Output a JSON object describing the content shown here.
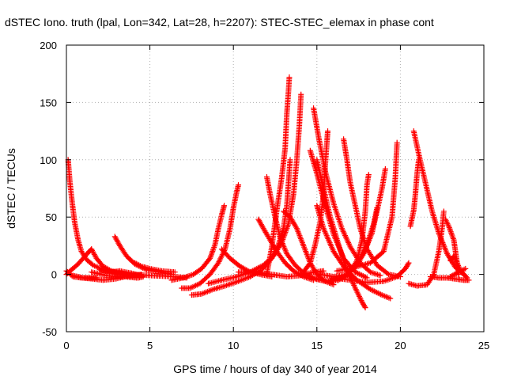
{
  "chart_data": {
    "type": "scatter",
    "title": "dSTEC Iono. truth (lpal, Lon=342, Lat=28, h=2207): STEC-STEC_elemax in phase cont",
    "xlabel": "GPS time / hours of day 340 of year 2014",
    "ylabel": "dSTEC  / TECUs",
    "xlim": [
      0,
      25
    ],
    "ylim": [
      -50,
      200
    ],
    "xticks": [
      "0",
      "5",
      "10",
      "15",
      "20",
      "25"
    ],
    "yticks": [
      "-50",
      "0",
      "50",
      "100",
      "150",
      "200"
    ],
    "grid": true,
    "marker": "+",
    "color": "#ff0000",
    "series": [
      {
        "values": [
          [
            0.0,
            3
          ],
          [
            0.4,
            -2
          ],
          [
            0.9,
            -3
          ],
          [
            1.4,
            -3
          ],
          [
            1.8,
            -3
          ]
        ]
      },
      {
        "values": [
          [
            0.1,
            100
          ],
          [
            0.2,
            82
          ],
          [
            0.35,
            62
          ],
          [
            0.5,
            45
          ],
          [
            0.7,
            30
          ],
          [
            0.9,
            20
          ],
          [
            1.2,
            13
          ],
          [
            1.6,
            8
          ],
          [
            2.2,
            4
          ],
          [
            3.0,
            2
          ],
          [
            4.0,
            0
          ],
          [
            5.0,
            -1
          ],
          [
            6.5,
            -2
          ],
          [
            7.2,
            -3
          ]
        ]
      },
      {
        "values": [
          [
            0.0,
            0
          ],
          [
            0.3,
            4
          ],
          [
            0.7,
            9
          ],
          [
            1.0,
            14
          ],
          [
            1.3,
            19
          ],
          [
            1.5,
            22
          ]
        ]
      },
      {
        "values": [
          [
            0.4,
            -1
          ],
          [
            1.0,
            -3
          ],
          [
            1.6,
            -4
          ],
          [
            2.2,
            -5
          ],
          [
            2.9,
            -4
          ],
          [
            3.5,
            -2
          ],
          [
            4.2,
            -3
          ]
        ]
      },
      {
        "values": [
          [
            1.5,
            22
          ],
          [
            1.8,
            14
          ],
          [
            2.2,
            7
          ],
          [
            2.8,
            2
          ],
          [
            3.5,
            -1
          ],
          [
            4.3,
            -3
          ],
          [
            4.6,
            -2
          ]
        ]
      },
      {
        "values": [
          [
            2.9,
            33
          ],
          [
            3.2,
            25
          ],
          [
            3.6,
            16
          ],
          [
            4.1,
            9
          ],
          [
            4.8,
            4
          ],
          [
            5.6,
            2
          ],
          [
            6.3,
            0
          ]
        ]
      },
      {
        "values": [
          [
            4.1,
            10
          ],
          [
            4.5,
            7
          ],
          [
            5.0,
            5
          ],
          [
            5.7,
            3
          ],
          [
            6.5,
            2
          ]
        ]
      },
      {
        "values": [
          [
            1.5,
            2
          ],
          [
            2.4,
            -1
          ],
          [
            3.3,
            -2
          ],
          [
            4.0,
            -1
          ],
          [
            4.5,
            0
          ]
        ]
      },
      {
        "values": [
          [
            2.0,
            4
          ],
          [
            2.6,
            2
          ],
          [
            3.2,
            3
          ],
          [
            3.9,
            1
          ],
          [
            4.4,
            -1
          ]
        ]
      },
      {
        "values": [
          [
            6.3,
            -5
          ],
          [
            7.0,
            -3
          ],
          [
            7.6,
            0
          ],
          [
            8.1,
            5
          ],
          [
            8.6,
            14
          ],
          [
            8.9,
            26
          ],
          [
            9.1,
            40
          ],
          [
            9.3,
            52
          ],
          [
            9.45,
            60
          ]
        ]
      },
      {
        "values": [
          [
            6.9,
            -12
          ],
          [
            7.4,
            -12
          ],
          [
            8.0,
            -8
          ],
          [
            8.6,
            0
          ],
          [
            9.1,
            10
          ],
          [
            9.5,
            22
          ],
          [
            9.8,
            40
          ],
          [
            10.0,
            58
          ],
          [
            10.2,
            72
          ],
          [
            10.3,
            78
          ]
        ]
      },
      {
        "values": [
          [
            9.3,
            22
          ],
          [
            9.8,
            14
          ],
          [
            10.4,
            7
          ],
          [
            11.0,
            2
          ],
          [
            11.6,
            0
          ],
          [
            12.3,
            -2
          ]
        ]
      },
      {
        "values": [
          [
            7.5,
            -18
          ],
          [
            8.1,
            -17
          ],
          [
            8.8,
            -13
          ],
          [
            9.5,
            -10
          ],
          [
            10.3,
            -6
          ],
          [
            11.0,
            -2
          ],
          [
            11.7,
            4
          ],
          [
            12.3,
            14
          ],
          [
            12.7,
            26
          ],
          [
            13.0,
            40
          ],
          [
            13.2,
            60
          ],
          [
            13.3,
            80
          ],
          [
            13.4,
            100
          ]
        ]
      },
      {
        "values": [
          [
            12.0,
            0
          ],
          [
            12.3,
            24
          ],
          [
            12.6,
            56
          ],
          [
            12.9,
            85
          ],
          [
            13.1,
            110
          ],
          [
            13.2,
            140
          ],
          [
            13.3,
            160
          ],
          [
            13.35,
            172
          ]
        ]
      },
      {
        "values": [
          [
            8.5,
            -8
          ],
          [
            9.3,
            -5
          ],
          [
            10.2,
            -2
          ],
          [
            11.0,
            2
          ],
          [
            11.8,
            8
          ],
          [
            12.4,
            16
          ],
          [
            12.9,
            28
          ],
          [
            13.3,
            44
          ],
          [
            13.6,
            70
          ],
          [
            13.8,
            100
          ],
          [
            13.95,
            130
          ],
          [
            14.05,
            157
          ]
        ]
      },
      {
        "values": [
          [
            11.5,
            48
          ],
          [
            11.8,
            40
          ],
          [
            12.2,
            30
          ],
          [
            12.6,
            20
          ],
          [
            13.1,
            10
          ],
          [
            13.6,
            3
          ],
          [
            14.2,
            -2
          ],
          [
            14.8,
            -5
          ]
        ]
      },
      {
        "values": [
          [
            12.0,
            85
          ],
          [
            12.2,
            70
          ],
          [
            12.5,
            50
          ],
          [
            12.8,
            32
          ],
          [
            13.2,
            18
          ],
          [
            13.7,
            8
          ],
          [
            14.3,
            0
          ],
          [
            15.0,
            -4
          ],
          [
            15.5,
            -6
          ]
        ]
      },
      {
        "values": [
          [
            13.0,
            55
          ],
          [
            13.4,
            50
          ],
          [
            13.8,
            40
          ],
          [
            14.2,
            25
          ],
          [
            14.6,
            10
          ],
          [
            15.0,
            0
          ],
          [
            15.5,
            -6
          ],
          [
            16.0,
            -9
          ]
        ]
      },
      {
        "values": [
          [
            10.3,
            2
          ],
          [
            11.2,
            2
          ],
          [
            12.3,
            0
          ],
          [
            13.2,
            -2
          ],
          [
            14.0,
            -1
          ],
          [
            14.8,
            2
          ],
          [
            15.4,
            3
          ]
        ]
      },
      {
        "values": [
          [
            14.2,
            2
          ],
          [
            14.6,
            10
          ],
          [
            14.9,
            26
          ],
          [
            15.2,
            46
          ],
          [
            15.4,
            70
          ],
          [
            15.5,
            95
          ],
          [
            15.6,
            115
          ],
          [
            15.65,
            125
          ]
        ]
      },
      {
        "values": [
          [
            14.8,
            145
          ],
          [
            15.1,
            120
          ],
          [
            15.5,
            90
          ],
          [
            16.0,
            62
          ],
          [
            16.5,
            40
          ],
          [
            17.0,
            24
          ],
          [
            17.6,
            10
          ],
          [
            18.2,
            2
          ],
          [
            18.8,
            -1
          ]
        ]
      },
      {
        "values": [
          [
            14.6,
            108
          ],
          [
            15.0,
            88
          ],
          [
            15.5,
            60
          ],
          [
            16.0,
            35
          ],
          [
            16.6,
            14
          ],
          [
            17.3,
            2
          ],
          [
            18.0,
            -3
          ]
        ]
      },
      {
        "values": [
          [
            15.0,
            100
          ],
          [
            15.4,
            75
          ],
          [
            15.8,
            50
          ],
          [
            16.3,
            26
          ],
          [
            16.8,
            4
          ],
          [
            17.3,
            -12
          ],
          [
            17.7,
            -24
          ],
          [
            17.9,
            -29
          ]
        ]
      },
      {
        "values": [
          [
            15.0,
            60
          ],
          [
            15.4,
            40
          ],
          [
            16.0,
            20
          ],
          [
            16.7,
            5
          ],
          [
            17.4,
            -5
          ],
          [
            18.2,
            -13
          ],
          [
            18.9,
            -18
          ],
          [
            19.4,
            -21
          ]
        ]
      },
      {
        "values": [
          [
            14.9,
            -4
          ],
          [
            15.6,
            -6
          ],
          [
            16.3,
            -5
          ],
          [
            16.9,
            0
          ],
          [
            17.4,
            12
          ],
          [
            17.7,
            30
          ],
          [
            17.9,
            55
          ],
          [
            18.0,
            78
          ],
          [
            18.1,
            87
          ]
        ]
      },
      {
        "values": [
          [
            16.6,
            118
          ],
          [
            16.8,
            100
          ],
          [
            17.0,
            80
          ],
          [
            17.3,
            60
          ],
          [
            17.6,
            40
          ],
          [
            18.0,
            22
          ],
          [
            18.6,
            8
          ],
          [
            19.3,
            0
          ],
          [
            20.0,
            -2
          ]
        ]
      },
      {
        "values": [
          [
            15.8,
            -5
          ],
          [
            16.5,
            -3
          ],
          [
            17.2,
            5
          ],
          [
            17.8,
            18
          ],
          [
            18.3,
            36
          ],
          [
            18.6,
            55
          ],
          [
            18.9,
            75
          ],
          [
            19.1,
            92
          ]
        ]
      },
      {
        "values": [
          [
            15.2,
            0
          ],
          [
            16.0,
            -2
          ],
          [
            16.8,
            0
          ],
          [
            17.5,
            10
          ],
          [
            18.0,
            26
          ],
          [
            18.4,
            44
          ],
          [
            18.6,
            58
          ]
        ]
      },
      {
        "values": [
          [
            16.2,
            3
          ],
          [
            17.2,
            6
          ],
          [
            18.2,
            10
          ],
          [
            19.0,
            20
          ],
          [
            19.5,
            50
          ],
          [
            19.7,
            85
          ],
          [
            19.8,
            115
          ]
        ]
      },
      {
        "values": [
          [
            16.0,
            -3
          ],
          [
            17.0,
            -5
          ],
          [
            18.0,
            -7
          ],
          [
            19.0,
            -6
          ],
          [
            19.8,
            -2
          ],
          [
            20.3,
            5
          ],
          [
            20.5,
            10
          ]
        ]
      },
      {
        "values": [
          [
            20.8,
            125
          ],
          [
            21.1,
            105
          ],
          [
            21.5,
            80
          ],
          [
            21.9,
            55
          ],
          [
            22.3,
            36
          ],
          [
            22.8,
            18
          ],
          [
            23.3,
            6
          ],
          [
            23.8,
            0
          ]
        ]
      },
      {
        "values": [
          [
            20.6,
            42
          ],
          [
            20.8,
            56
          ],
          [
            20.9,
            70
          ],
          [
            21.0,
            88
          ],
          [
            21.1,
            100
          ]
        ]
      },
      {
        "values": [
          [
            20.5,
            -8
          ],
          [
            21.0,
            -10
          ],
          [
            21.6,
            -9
          ],
          [
            22.0,
            0
          ],
          [
            22.3,
            20
          ],
          [
            22.5,
            40
          ],
          [
            22.6,
            55
          ]
        ]
      },
      {
        "values": [
          [
            22.7,
            48
          ],
          [
            22.9,
            42
          ],
          [
            23.2,
            30
          ],
          [
            23.3,
            20
          ],
          [
            23.4,
            10
          ],
          [
            23.5,
            0
          ]
        ]
      },
      {
        "values": [
          [
            23.0,
            12
          ],
          [
            23.2,
            16
          ],
          [
            23.4,
            10
          ],
          [
            23.6,
            3
          ],
          [
            24.0,
            -3
          ]
        ]
      },
      {
        "values": [
          [
            21.8,
            -2
          ],
          [
            22.3,
            -3
          ],
          [
            22.8,
            -3
          ],
          [
            23.3,
            -4
          ],
          [
            23.8,
            -5
          ],
          [
            24.1,
            -5
          ]
        ]
      },
      {
        "values": [
          [
            23.0,
            -2
          ],
          [
            23.5,
            2
          ],
          [
            23.9,
            5
          ]
        ]
      }
    ]
  }
}
